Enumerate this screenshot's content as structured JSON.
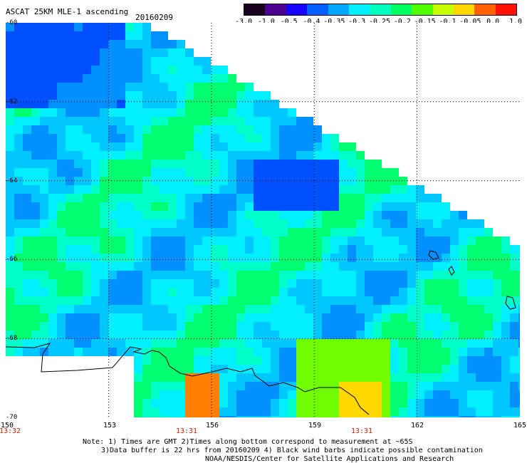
{
  "header": {
    "title": "ASCAT 25KM MLE-1 ascending",
    "date": "20160209"
  },
  "colorbar": {
    "labels": [
      "-3.0",
      "-1.0",
      "-0.5",
      "-0.4",
      "-0.35",
      "-0.3",
      "-0.25",
      "-0.2",
      "-0.15",
      "-0.1",
      "-0.05",
      "0.0",
      "1.0"
    ],
    "colors": [
      "#1a0020",
      "#4b0090",
      "#1800ff",
      "#0060ff",
      "#00a8ff",
      "#00f0ff",
      "#00ffc0",
      "#00ff60",
      "#50ff00",
      "#c8ff00",
      "#ffd800",
      "#ff6000",
      "#ff1000"
    ]
  },
  "axes": {
    "lat_labels": [
      "-60",
      "-62",
      "-64",
      "-66",
      "-68",
      "-70"
    ],
    "lon_labels": [
      "150",
      "153",
      "156",
      "159",
      "162",
      "165"
    ],
    "time_labels": [
      "13:32",
      "13:31",
      "13:31"
    ]
  },
  "notes": {
    "line1": "Note: 1) Times are GMT 2)Times along bottom correspond to measurement at ~65S",
    "line2": "3)Data buffer is 22 hrs from 20160209 4) Black wind barbs indicate possible contamination",
    "line3": "NOAA/NESDIS/Center for Satellite Applications and Research"
  },
  "map_colors": {
    "deep_blue": "#0050ff",
    "blue": "#0090ff",
    "light_blue": "#00c8ff",
    "cyan": "#00f0ff",
    "aqua": "#00ffc8",
    "green": "#00ff70",
    "lime": "#70ff00",
    "yellow": "#ffd800",
    "orange": "#ff8000"
  }
}
